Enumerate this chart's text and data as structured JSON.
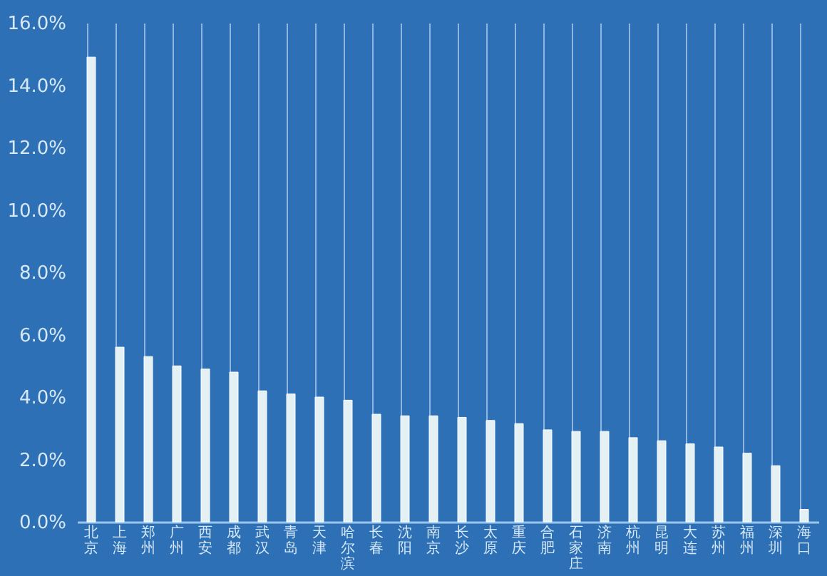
{
  "chart_data": {
    "type": "bar",
    "categories": [
      "北京",
      "上海",
      "郑州",
      "广州",
      "西安",
      "成都",
      "武汉",
      "青岛",
      "天津",
      "哈尔滨",
      "长春",
      "沈阳",
      "南京",
      "长沙",
      "太原",
      "重庆",
      "合肥",
      "石家庄",
      "济南",
      "杭州",
      "昆明",
      "大连",
      "苏州",
      "福州",
      "深圳",
      "海口"
    ],
    "values": [
      14.9,
      5.6,
      5.3,
      5.0,
      4.9,
      4.8,
      4.2,
      4.1,
      4.0,
      3.9,
      3.45,
      3.4,
      3.4,
      3.35,
      3.25,
      3.15,
      2.95,
      2.9,
      2.9,
      2.7,
      2.6,
      2.5,
      2.4,
      2.2,
      1.8,
      0.4
    ],
    "color": "#e4f1f4",
    "ylim": [
      0,
      16
    ],
    "yticks": [
      {
        "value": 0,
        "label": "0.0%"
      },
      {
        "value": 2,
        "label": "2.0%"
      },
      {
        "value": 4,
        "label": "4.0%"
      },
      {
        "value": 6,
        "label": "6.0%"
      },
      {
        "value": 8,
        "label": "8.0%"
      },
      {
        "value": 10,
        "label": "10.0%"
      },
      {
        "value": 12,
        "label": "12.0%"
      },
      {
        "value": 14,
        "label": "14.0%"
      },
      {
        "value": 16,
        "label": "16.0%"
      }
    ],
    "grid": "x"
  }
}
